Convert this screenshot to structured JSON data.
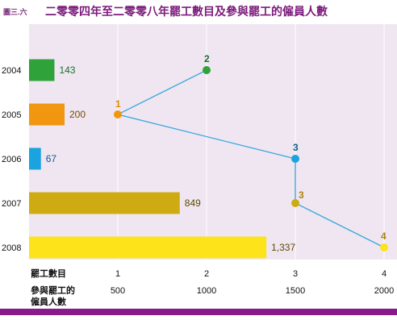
{
  "header": {
    "figure_label": "圖三.六",
    "title": "二零零四年至二零零八年罷工數目及參與罷工的僱員人數"
  },
  "legend_labels": {
    "strikes": "罷工數目",
    "workers_line1": "參與罷工的",
    "workers_line2": "僱員人數"
  },
  "colors": {
    "panel_bg": "#efe6f2",
    "header_band": "#7b1a7b",
    "bottom_band": "#8a1a8a",
    "line": "#3aa7d9"
  },
  "chart_data": {
    "type": "bar+line",
    "title": "二零零四年至二零零八年罷工數目及參與罷工的僱員人數",
    "categories": [
      "2004",
      "2005",
      "2006",
      "2007",
      "2008"
    ],
    "series": [
      {
        "name": "參與罷工的僱員人數",
        "type": "bar",
        "values": [
          143,
          200,
          67,
          849,
          1337
        ],
        "value_labels": [
          "143",
          "200",
          "67",
          "849",
          "1,337"
        ],
        "colors": [
          "#2fa33a",
          "#f0960f",
          "#1aa3df",
          "#cfab13",
          "#fde31a"
        ],
        "label_colors": [
          "#1f6d2a",
          "#7a4a00",
          "#0b5f86",
          "#5d4a00",
          "#5d4a00"
        ],
        "axis": {
          "min": 0,
          "max": 2000,
          "ticks": [
            500,
            1000,
            1500,
            2000
          ],
          "tick_labels": [
            "500",
            "1000",
            "1500",
            "2000"
          ]
        }
      },
      {
        "name": "罷工數目",
        "type": "line",
        "values": [
          2,
          1,
          3,
          3,
          4
        ],
        "point_labels": [
          "2",
          "1",
          "3",
          "3",
          "4"
        ],
        "colors": [
          "#2fa33a",
          "#f0960f",
          "#1aa3df",
          "#cfab13",
          "#fde31a"
        ],
        "label_colors": [
          "#1f6d2a",
          "#e08a00",
          "#0b5f86",
          "#a8850b",
          "#a8850b"
        ],
        "axis": {
          "min": 0,
          "max": 4,
          "ticks": [
            1,
            2,
            3,
            4
          ],
          "tick_labels": [
            "1",
            "2",
            "3",
            "4"
          ]
        }
      }
    ],
    "grid": true
  }
}
